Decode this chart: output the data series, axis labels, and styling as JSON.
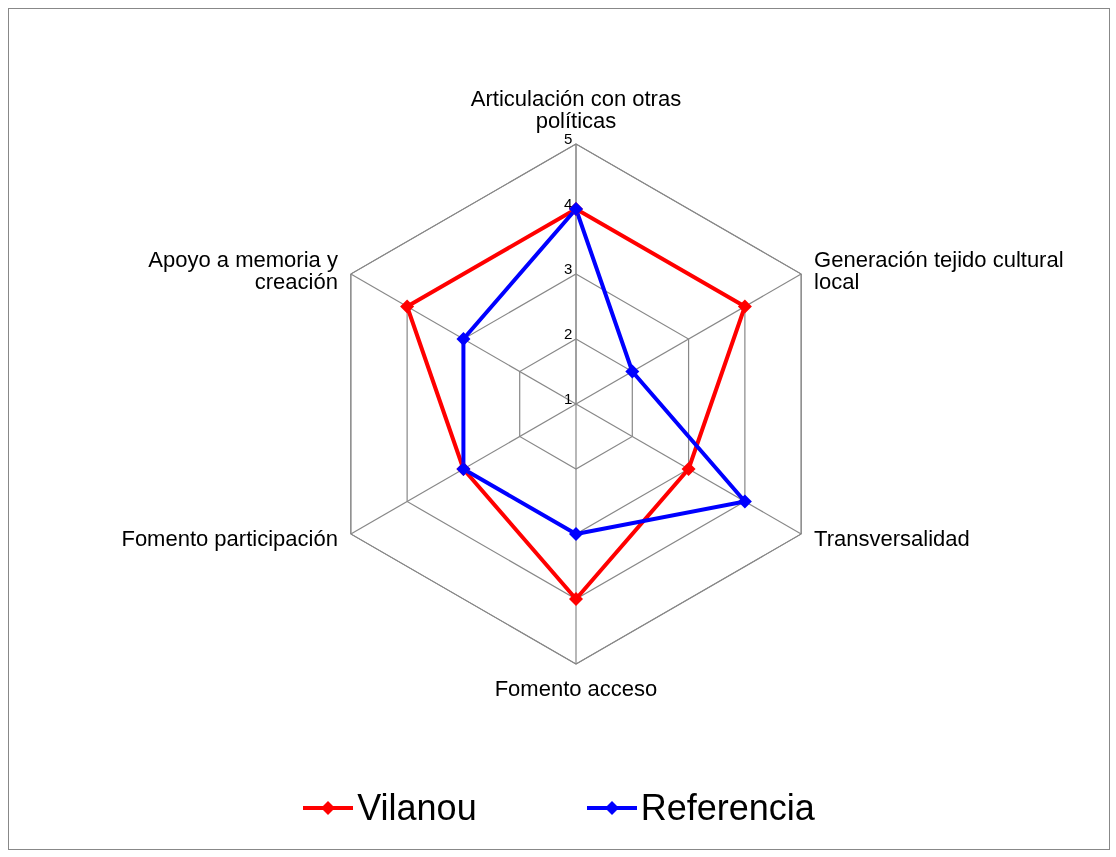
{
  "chart_data": {
    "type": "radar",
    "categories": [
      "Articulación con otras políticas",
      "Generación tejido cultural local",
      "Transversalidad",
      "Fomento acceso",
      "Fomento participación",
      "Apoyo a memoria y creación"
    ],
    "series": [
      {
        "name": "Vilanou",
        "color": "#ff0000",
        "values": [
          4,
          4,
          3,
          4,
          3,
          4
        ]
      },
      {
        "name": "Referencia",
        "color": "#0000ff",
        "values": [
          4,
          2,
          4,
          3,
          3,
          3
        ]
      }
    ],
    "ylim": [
      1,
      5
    ],
    "yticks": [
      1,
      2,
      3,
      4,
      5
    ],
    "grid": true,
    "legend": "bottom",
    "marker": "diamond",
    "line_style": "solid"
  }
}
